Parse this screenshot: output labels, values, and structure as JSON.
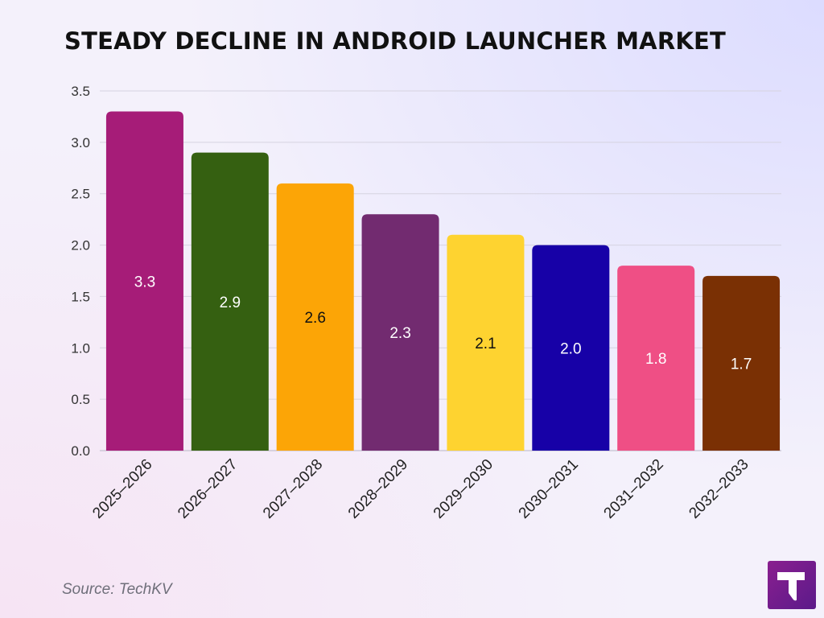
{
  "title": "STEADY DECLINE IN ANDROID LAUNCHER MARKET",
  "source": "Source: TechKV",
  "chart_data": {
    "type": "bar",
    "title": "STEADY DECLINE IN ANDROID LAUNCHER MARKET",
    "xlabel": "",
    "ylabel": "",
    "categories": [
      "2025–2026",
      "2026–2027",
      "2027–2028",
      "2028–2029",
      "2029–2030",
      "2030–2031",
      "2031–2032",
      "2032–2033"
    ],
    "values": [
      3.3,
      2.9,
      2.6,
      2.3,
      2.1,
      2.0,
      1.8,
      1.7
    ],
    "value_labels": [
      "3.3",
      "2.9",
      "2.6",
      "2.3",
      "2.1",
      "2.0",
      "1.8",
      "1.7"
    ],
    "bar_colors": [
      "#a61c78",
      "#356011",
      "#fca506",
      "#722b70",
      "#fed330",
      "#1701a7",
      "#ef4f85",
      "#7a3004"
    ],
    "label_colors": [
      "#ffffff",
      "#ffffff",
      "#111111",
      "#ffffff",
      "#111111",
      "#ffffff",
      "#ffffff",
      "#ffffff"
    ],
    "ylim": [
      0,
      3.5
    ],
    "yticks": [
      "0.0",
      "0.5",
      "1.0",
      "1.5",
      "2.0",
      "2.5",
      "3.0",
      "3.5"
    ],
    "grid": true
  }
}
